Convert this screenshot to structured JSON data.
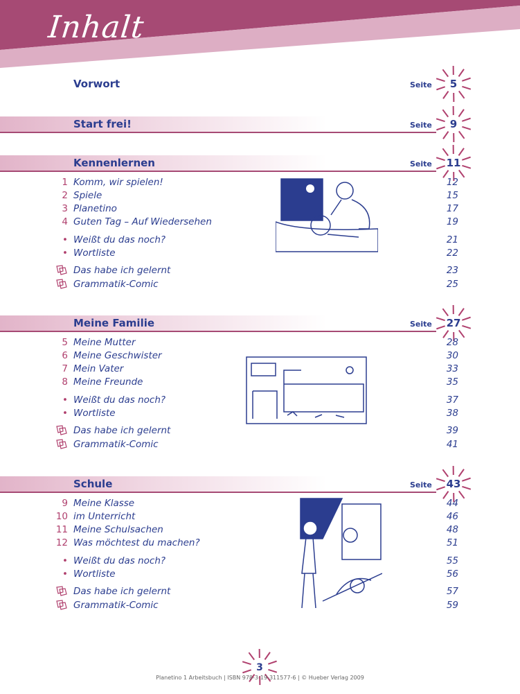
{
  "title": "Inhalt",
  "seite_label": "Seite",
  "colors": {
    "accent": "#a64a74",
    "accent_light": "#ddaec4",
    "text": "#2b3d8f",
    "number": "#b0406e"
  },
  "sections": [
    {
      "title": "Vorwort",
      "page": "5",
      "items": []
    },
    {
      "title": "Start frei!",
      "page": "9",
      "items": []
    },
    {
      "title": "Kennenlernen",
      "page": "11",
      "items": [
        {
          "marker": "1",
          "text": "Komm, wir spielen!",
          "page": "12"
        },
        {
          "marker": "2",
          "text": "Spiele",
          "page": "15"
        },
        {
          "marker": "3",
          "text": "Planetino",
          "page": "17"
        },
        {
          "marker": "4",
          "text": "Guten Tag – Auf Wiedersehen",
          "page": "19"
        },
        {
          "marker": "•",
          "text": "Weißt du das noch?",
          "page": "21"
        },
        {
          "marker": "•",
          "text": "Wortliste",
          "page": "22"
        },
        {
          "marker": "icon",
          "text": "Das habe ich gelernt",
          "page": "23"
        },
        {
          "marker": "icon",
          "text": "Grammatik-Comic",
          "page": "25"
        }
      ]
    },
    {
      "title": "Meine Familie",
      "page": "27",
      "items": [
        {
          "marker": "5",
          "text": "Meine Mutter",
          "page": "28"
        },
        {
          "marker": "6",
          "text": "Meine Geschwister",
          "page": "30"
        },
        {
          "marker": "7",
          "text": "Mein Vater",
          "page": "33"
        },
        {
          "marker": "8",
          "text": "Meine Freunde",
          "page": "35"
        },
        {
          "marker": "•",
          "text": "Weißt du das noch?",
          "page": "37"
        },
        {
          "marker": "•",
          "text": "Wortliste",
          "page": "38"
        },
        {
          "marker": "icon",
          "text": "Das habe ich gelernt",
          "page": "39"
        },
        {
          "marker": "icon",
          "text": "Grammatik-Comic",
          "page": "41"
        }
      ]
    },
    {
      "title": "Schule",
      "page": "43",
      "items": [
        {
          "marker": "9",
          "text": "Meine Klasse",
          "page": "44"
        },
        {
          "marker": "10",
          "text": "im Unterricht",
          "page": "46"
        },
        {
          "marker": "11",
          "text": "Meine Schulsachen",
          "page": "48"
        },
        {
          "marker": "12",
          "text": "Was möchtest du machen?",
          "page": "51"
        },
        {
          "marker": "•",
          "text": "Weißt du das noch?",
          "page": "55"
        },
        {
          "marker": "•",
          "text": "Wortliste",
          "page": "56"
        },
        {
          "marker": "icon",
          "text": "Das habe ich gelernt",
          "page": "57"
        },
        {
          "marker": "icon",
          "text": "Grammatik-Comic",
          "page": "59"
        }
      ]
    }
  ],
  "page_number": "3",
  "footer": "Planetino 1 Arbeitsbuch | ISBN 978-3-19-311577-6 | © Hueber Verlag 2009"
}
